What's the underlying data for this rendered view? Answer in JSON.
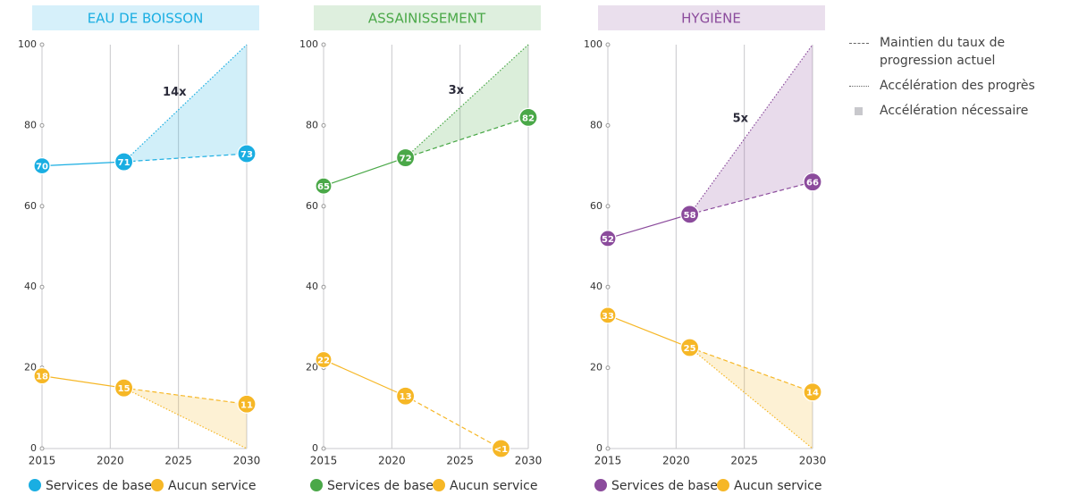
{
  "chart_data": [
    {
      "type": "line",
      "title": "EAU DE BOISSON",
      "xlim": [
        2015,
        2030
      ],
      "xticks": [
        2015,
        2020,
        2025,
        2030
      ],
      "ylim": [
        0,
        100
      ],
      "yticks": [
        0,
        20,
        40,
        60,
        80,
        100
      ],
      "annotation": "14x",
      "series": [
        {
          "name": "Services de base",
          "color": "#1aaee2",
          "x": [
            2015,
            2021,
            2030
          ],
          "values": [
            70,
            71,
            73
          ],
          "target": 100
        },
        {
          "name": "Aucun service",
          "color": "#f6b726",
          "x": [
            2015,
            2021,
            2030
          ],
          "values": [
            18,
            15,
            11
          ],
          "target": 0
        }
      ]
    },
    {
      "type": "line",
      "title": "ASSAINISSEMENT",
      "xlim": [
        2015,
        2030
      ],
      "xticks": [
        2015,
        2020,
        2025,
        2030
      ],
      "ylim": [
        0,
        100
      ],
      "yticks": [
        0,
        20,
        40,
        60,
        80,
        100
      ],
      "annotation": "3x",
      "series": [
        {
          "name": "Services de base",
          "color": "#4aa848",
          "x": [
            2015,
            2021,
            2030
          ],
          "values": [
            65,
            72,
            82
          ],
          "target": 100
        },
        {
          "name": "Aucun service",
          "color": "#f6b726",
          "x": [
            2015,
            2021,
            2028
          ],
          "values": [
            22,
            13,
            0
          ],
          "value_labels": [
            "22",
            "13",
            "<1"
          ]
        }
      ]
    },
    {
      "type": "line",
      "title": "HYGIÈNE",
      "xlim": [
        2015,
        2030
      ],
      "xticks": [
        2015,
        2020,
        2025,
        2030
      ],
      "ylim": [
        0,
        100
      ],
      "yticks": [
        0,
        20,
        40,
        60,
        80,
        100
      ],
      "annotation": "5x",
      "series": [
        {
          "name": "Services de base",
          "color": "#8b4b9c",
          "x": [
            2015,
            2021,
            2030
          ],
          "values": [
            52,
            58,
            66
          ],
          "target": 100
        },
        {
          "name": "Aucun service",
          "color": "#f6b726",
          "x": [
            2015,
            2021,
            2030
          ],
          "values": [
            33,
            25,
            14
          ],
          "target": 0
        }
      ]
    }
  ],
  "legend": [
    "Maintien du taux de progression actuel",
    "Accélération des progrès",
    "Accélération nécessaire"
  ]
}
